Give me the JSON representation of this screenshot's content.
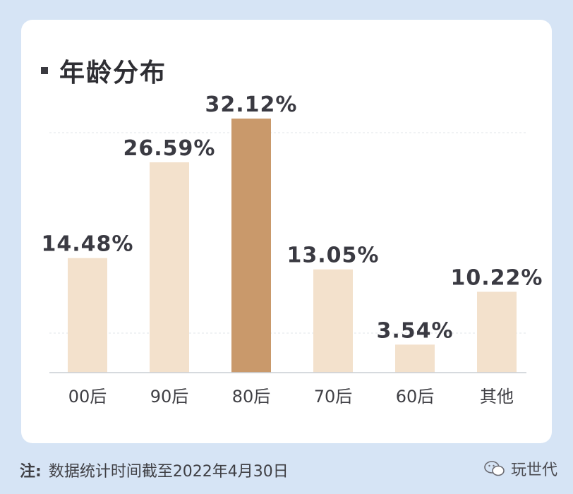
{
  "chart_data": {
    "type": "bar",
    "title": "年龄分布",
    "categories": [
      "00后",
      "90后",
      "80后",
      "70后",
      "60后",
      "其他"
    ],
    "values": [
      14.48,
      26.59,
      32.12,
      13.05,
      3.54,
      10.22
    ],
    "labels": [
      "14.48%",
      "26.59%",
      "32.12%",
      "13.05%",
      "3.54%",
      "10.22%"
    ],
    "ylim": [
      0,
      32.12
    ],
    "grid": true,
    "highlight_index": 2
  },
  "colors": {
    "bar": "#f3e1cc",
    "highlight": "#c9996b",
    "label": "#3a3a42",
    "axis": "#c9cdd4",
    "grid": "#e2e4e8"
  },
  "footer": {
    "label": "注:",
    "text": "数据统计时间截至2022年4月30日"
  },
  "brand": {
    "name": "玩世代",
    "icon": "wechat-icon"
  }
}
